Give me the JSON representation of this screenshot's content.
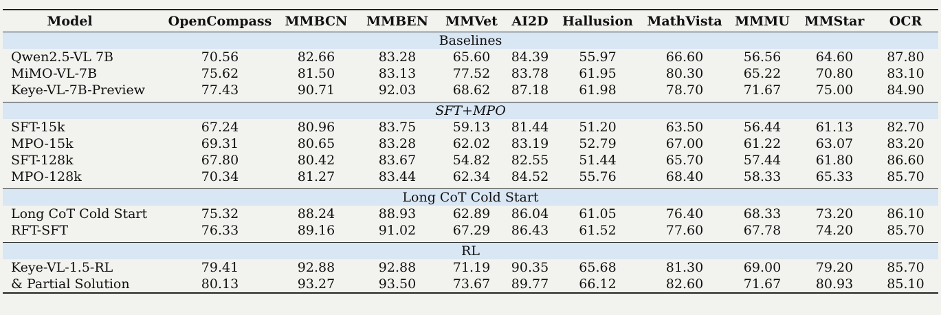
{
  "headers": [
    "Model",
    "OpenCompass",
    "MMBCN",
    "MMBEN",
    "MMVet",
    "AI2D",
    "Hallusion",
    "MathVista",
    "MMMU",
    "MMStar",
    "OCR"
  ],
  "sections": [
    {
      "title": "Baselines",
      "italic": false,
      "rows": [
        [
          "Qwen2.5-VL 7B",
          "70.56",
          "82.66",
          "83.28",
          "65.60",
          "84.39",
          "55.97",
          "66.60",
          "56.56",
          "64.60",
          "87.80"
        ],
        [
          "MiMO-VL-7B",
          "75.62",
          "81.50",
          "83.13",
          "77.52",
          "83.78",
          "61.95",
          "80.30",
          "65.22",
          "70.80",
          "83.10"
        ],
        [
          "Keye-VL-7B-Preview",
          "77.43",
          "90.71",
          "92.03",
          "68.62",
          "87.18",
          "61.98",
          "78.70",
          "71.67",
          "75.00",
          "84.90"
        ]
      ]
    },
    {
      "title": "SFT+MPO",
      "italic": true,
      "rows": [
        [
          "SFT-15k",
          "67.24",
          "80.96",
          "83.75",
          "59.13",
          "81.44",
          "51.20",
          "63.50",
          "56.44",
          "61.13",
          "82.70"
        ],
        [
          "MPO-15k",
          "69.31",
          "80.65",
          "83.28",
          "62.02",
          "83.19",
          "52.79",
          "67.00",
          "61.22",
          "63.07",
          "83.20"
        ],
        [
          "SFT-128k",
          "67.80",
          "80.42",
          "83.67",
          "54.82",
          "82.55",
          "51.44",
          "65.70",
          "57.44",
          "61.80",
          "86.60"
        ],
        [
          "MPO-128k",
          "70.34",
          "81.27",
          "83.44",
          "62.34",
          "84.52",
          "55.76",
          "68.40",
          "58.33",
          "65.33",
          "85.70"
        ]
      ]
    },
    {
      "title": "Long CoT Cold Start",
      "italic": false,
      "rows": [
        [
          "Long CoT Cold Start",
          "75.32",
          "88.24",
          "88.93",
          "62.89",
          "86.04",
          "61.05",
          "76.40",
          "68.33",
          "73.20",
          "86.10"
        ],
        [
          "RFT-SFT",
          "76.33",
          "89.16",
          "91.02",
          "67.29",
          "86.43",
          "61.52",
          "77.60",
          "67.78",
          "74.20",
          "85.70"
        ]
      ]
    },
    {
      "title": "RL",
      "italic": false,
      "rows": [
        [
          "Keye-VL-1.5-RL",
          "79.41",
          "92.88",
          "92.88",
          "71.19",
          "90.35",
          "65.68",
          "81.30",
          "69.00",
          "79.20",
          "85.70"
        ],
        [
          "& Partial Solution",
          "80.13",
          "93.27",
          "93.50",
          "73.67",
          "89.77",
          "66.12",
          "82.60",
          "71.67",
          "80.93",
          "85.10"
        ]
      ]
    }
  ]
}
